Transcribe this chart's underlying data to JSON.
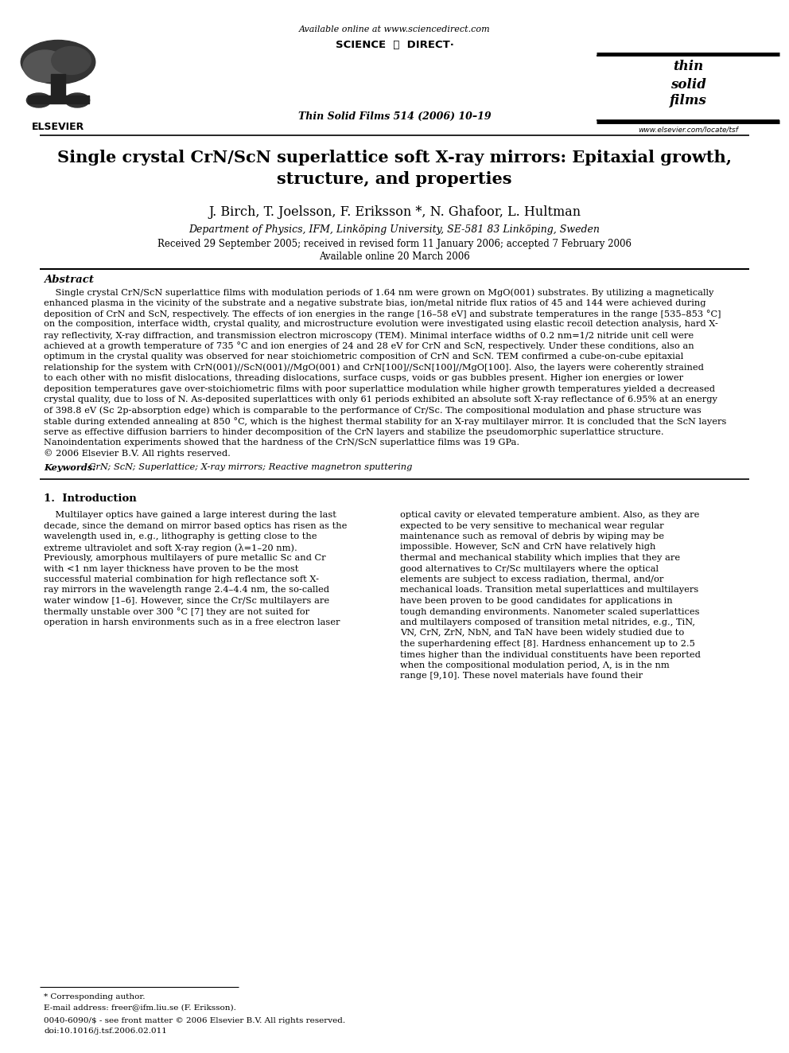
{
  "page_width": 9.92,
  "page_height": 13.23,
  "bg_color": "#ffffff",
  "header": {
    "available_online_text": "Available online at www.sciencedirect.com",
    "sciencedirect_text": "SCIENCE  ⓓ  DIRECT·",
    "journal_line": "Thin Solid Films 514 (2006) 10–19",
    "elsevier_text": "ELSEVIER",
    "website_text": "www.elsevier.com/locate/tsf"
  },
  "title_line1": "Single crystal CrN/ScN superlattice soft X-ray mirrors: Epitaxial growth,",
  "title_line2": "structure, and properties",
  "authors": "J. Birch, T. Joelsson, F. Eriksson *, N. Ghafoor, L. Hultman",
  "affiliation": "Department of Physics, IFM, Linköping University, SE-581 83 Linköping, Sweden",
  "received_line1": "Received 29 September 2005; received in revised form 11 January 2006; accepted 7 February 2006",
  "received_line2": "Available online 20 March 2006",
  "abstract_title": "Abstract",
  "abstract_indent": "    Single crystal CrN/ScN superlattice films with modulation periods of 1.64 nm were grown on MgO(001) substrates. By utilizing a magnetically",
  "abstract_lines": [
    "    Single crystal CrN/ScN superlattice films with modulation periods of 1.64 nm were grown on MgO(001) substrates. By utilizing a magnetically",
    "enhanced plasma in the vicinity of the substrate and a negative substrate bias, ion/metal nitride flux ratios of 45 and 144 were achieved during",
    "deposition of CrN and ScN, respectively. The effects of ion energies in the range [16–58 eV] and substrate temperatures in the range [535–853 °C]",
    "on the composition, interface width, crystal quality, and microstructure evolution were investigated using elastic recoil detection analysis, hard X-",
    "ray reflectivity, X-ray diffraction, and transmission electron microscopy (TEM). Minimal interface widths of 0.2 nm=1/2 nitride unit cell were",
    "achieved at a growth temperature of 735 °C and ion energies of 24 and 28 eV for CrN and ScN, respectively. Under these conditions, also an",
    "optimum in the crystal quality was observed for near stoichiometric composition of CrN and ScN. TEM confirmed a cube-on-cube epitaxial",
    "relationship for the system with CrN(001)//ScN(001)//MgO(001) and CrN[100]//ScN[100]//MgO[100]. Also, the layers were coherently strained",
    "to each other with no misfit dislocations, threading dislocations, surface cusps, voids or gas bubbles present. Higher ion energies or lower",
    "deposition temperatures gave over-stoichiometric films with poor superlattice modulation while higher growth temperatures yielded a decreased",
    "crystal quality, due to loss of N. As-deposited superlattices with only 61 periods exhibited an absolute soft X-ray reflectance of 6.95% at an energy",
    "of 398.8 eV (Sc 2p-absorption edge) which is comparable to the performance of Cr/Sc. The compositional modulation and phase structure was",
    "stable during extended annealing at 850 °C, which is the highest thermal stability for an X-ray multilayer mirror. It is concluded that the ScN layers",
    "serve as effective diffusion barriers to hinder decomposition of the CrN layers and stabilize the pseudomorphic superlattice structure.",
    "Nanoindentation experiments showed that the hardness of the CrN/ScN superlattice films was 19 GPa.",
    "© 2006 Elsevier B.V. All rights reserved."
  ],
  "keywords_label": "Keywords:",
  "keywords_text": " CrN; ScN; Superlattice; X-ray mirrors; Reactive magnetron sputtering",
  "section1_title": "1.  Introduction",
  "section1_col1_lines": [
    "    Multilayer optics have gained a large interest during the last",
    "decade, since the demand on mirror based optics has risen as the",
    "wavelength used in, e.g., lithography is getting close to the",
    "extreme ultraviolet and soft X-ray region (λ=1–20 nm).",
    "Previously, amorphous multilayers of pure metallic Sc and Cr",
    "with <1 nm layer thickness have proven to be the most",
    "successful material combination for high reflectance soft X-",
    "ray mirrors in the wavelength range 2.4–4.4 nm, the so-called",
    "water window [1–6]. However, since the Cr/Sc multilayers are",
    "thermally unstable over 300 °C [7] they are not suited for",
    "operation in harsh environments such as in a free electron laser"
  ],
  "section1_col2_lines": [
    "optical cavity or elevated temperature ambient. Also, as they are",
    "expected to be very sensitive to mechanical wear regular",
    "maintenance such as removal of debris by wiping may be",
    "impossible. However, ScN and CrN have relatively high",
    "thermal and mechanical stability which implies that they are",
    "good alternatives to Cr/Sc multilayers where the optical",
    "elements are subject to excess radiation, thermal, and/or",
    "mechanical loads. Transition metal superlattices and multilayers",
    "have been proven to be good candidates for applications in",
    "tough demanding environments. Nanometer scaled superlattices",
    "and multilayers composed of transition metal nitrides, e.g., TiN,",
    "VN, CrN, ZrN, NbN, and TaN have been widely studied due to",
    "the superhardening effect [8]. Hardness enhancement up to 2.5",
    "times higher than the individual constituents have been reported",
    "when the compositional modulation period, Λ, is in the nm",
    "range [9,10]. These novel materials have found their"
  ],
  "footer_line1": "* Corresponding author.",
  "footer_line2": "E-mail address: freer@ifm.liu.se (F. Eriksson).",
  "footer_line3": "0040-6090/$ - see front matter © 2006 Elsevier B.V. All rights reserved.",
  "footer_line4": "doi:10.1016/j.tsf.2006.02.011"
}
